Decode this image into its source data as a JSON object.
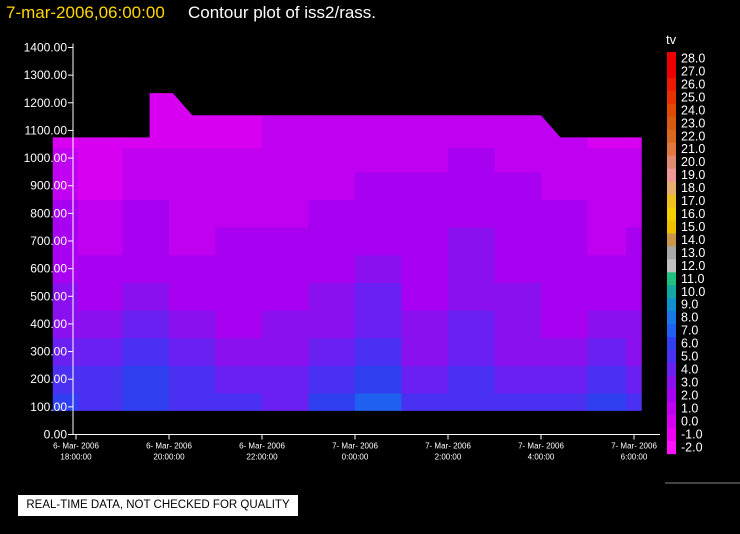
{
  "header": {
    "date": "7-mar-2006,06:00:00",
    "title": "Contour plot of iss2/rass."
  },
  "disclaimer": "REAL-TIME DATA, NOT CHECKED FOR QUALITY",
  "chart_data": {
    "type": "heatmap",
    "title": "Contour plot of iss2/rass.",
    "variable": "tv",
    "ylim": [
      0,
      1400
    ],
    "y_ticks": [
      "0.00",
      "100.00",
      "200.00",
      "300.00",
      "400.00",
      "500.00",
      "600.00",
      "700.00",
      "800.00",
      "900.00",
      "1000.00",
      "1100.00",
      "1200.00",
      "1300.00",
      "1400.00"
    ],
    "x_range": [
      "2006-03-06 17:00",
      "2006-03-07 06:30"
    ],
    "x_ticks": [
      {
        "date": "6- Mar- 2006",
        "time": "18:00:00"
      },
      {
        "date": "6- Mar- 2006",
        "time": "20:00:00"
      },
      {
        "date": "6- Mar- 2006",
        "time": "22:00:00"
      },
      {
        "date": "7- Mar- 2006",
        "time": "0:00:00"
      },
      {
        "date": "7- Mar- 2006",
        "time": "2:00:00"
      },
      {
        "date": "7- Mar- 2006",
        "time": "4:00:00"
      },
      {
        "date": "7- Mar- 2006",
        "time": "6:00:00"
      }
    ],
    "legend": {
      "title": "tv",
      "labels": [
        "28.0",
        "27.0",
        "26.0",
        "25.0",
        "24.0",
        "23.0",
        "22.0",
        "21.0",
        "20.0",
        "19.0",
        "18.0",
        "17.0",
        "16.0",
        "15.0",
        "14.0",
        "13.0",
        "12.0",
        "11.0",
        "10.0",
        "9.0",
        "8.0",
        "7.0",
        "6.0",
        "5.0",
        "4.0",
        "3.0",
        "2.0",
        "1.0",
        "0.0",
        "-1.0",
        "-2.0"
      ],
      "colors": [
        "#ee0000",
        "#ee0000",
        "#ee1a00",
        "#e83000",
        "#e04a00",
        "#d85a10",
        "#d86a20",
        "#e07840",
        "#e08a70",
        "#f09898",
        "#e8b070",
        "#f0c020",
        "#f4d000",
        "#f0c000",
        "#c89848",
        "#a8a8a8",
        "#c0c0c0",
        "#20c080",
        "#10a8a0",
        "#1090d0",
        "#1878e8",
        "#2060f0",
        "#3040f0",
        "#4a30f0",
        "#6a20f0",
        "#8a10f0",
        "#a800f0",
        "#c000f0",
        "#d800f0",
        "#ee00f0",
        "#ff10ff"
      ]
    },
    "heights": [
      100,
      200,
      300,
      400,
      500,
      600,
      700,
      800,
      900,
      1000,
      1075
    ],
    "times": [
      "17:35",
      "18:30",
      "19:30",
      "20:30",
      "21:30",
      "22:30",
      "23:30",
      "0:30",
      "1:30",
      "2:30",
      "3:30",
      "4:30",
      "5:30",
      "6:10"
    ],
    "values": [
      [
        6,
        5,
        6,
        5,
        5,
        4,
        6,
        7,
        5,
        5,
        5,
        5,
        6,
        5
      ],
      [
        5,
        5,
        6,
        5,
        4,
        4,
        5,
        6,
        4,
        5,
        4,
        4,
        5,
        4
      ],
      [
        4,
        4,
        5,
        4,
        3,
        3,
        4,
        5,
        3,
        4,
        3,
        3,
        4,
        3
      ],
      [
        3,
        3,
        4,
        3,
        2,
        3,
        3,
        4,
        3,
        4,
        3,
        2,
        3,
        3
      ],
      [
        3,
        2,
        3,
        2,
        2,
        2,
        3,
        4,
        2,
        3,
        3,
        2,
        2,
        2
      ],
      [
        2,
        2,
        2,
        2,
        2,
        2,
        2,
        3,
        2,
        3,
        2,
        2,
        2,
        2
      ],
      [
        2,
        1,
        2,
        1,
        2,
        2,
        2,
        2,
        2,
        3,
        2,
        2,
        1,
        2
      ],
      [
        2,
        1,
        2,
        1,
        1,
        1,
        2,
        2,
        2,
        2,
        2,
        2,
        1,
        1
      ],
      [
        1,
        0,
        1,
        1,
        1,
        1,
        1,
        2,
        2,
        2,
        2,
        1,
        1,
        1
      ],
      [
        1,
        0,
        1,
        1,
        1,
        1,
        1,
        1,
        1,
        2,
        1,
        1,
        1,
        1
      ],
      [
        0,
        0,
        0,
        0,
        0,
        1,
        1,
        1,
        1,
        1,
        1,
        1,
        0,
        0
      ]
    ],
    "top_boundary": [
      {
        "t": "17:30",
        "h": 1075
      },
      {
        "t": "19:35",
        "h": 1075
      },
      {
        "t": "19:35",
        "h": 1235
      },
      {
        "t": "20:05",
        "h": 1235
      },
      {
        "t": "20:30",
        "h": 1155
      },
      {
        "t": "4:00",
        "h": 1155
      },
      {
        "t": "4:25",
        "h": 1075
      },
      {
        "t": "6:10",
        "h": 1075
      }
    ]
  }
}
